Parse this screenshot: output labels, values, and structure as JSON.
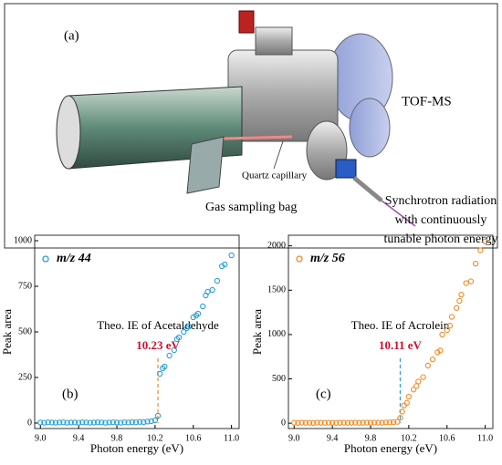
{
  "panel_a": {
    "label": "(a)",
    "tof": "TOF-MS",
    "capillary": "Quartz capillary",
    "bag": "Gas sampling bag",
    "synchrotron": [
      "Synchrotron radiation",
      "with continuously",
      "tunable photon energy"
    ]
  },
  "chart_data": [
    {
      "type": "scatter",
      "panel": "(b)",
      "xlabel": "Photon energy (eV)",
      "ylabel": "Peak area",
      "xlim": [
        8.94,
        11.08
      ],
      "ylim": [
        -30,
        1030
      ],
      "xticks": [
        {
          "value": 9,
          "label": "9.0"
        },
        9.4,
        9.8,
        10.2,
        10.6,
        {
          "value": 11,
          "label": "11.0"
        }
      ],
      "yticks": [
        0,
        250,
        500,
        750,
        1000
      ],
      "annotation": {
        "text": "Theo. IE of Acetaldehyde",
        "x": {
          "value": 10.23,
          "label": "10.23 eV"
        },
        "color": "#c8102e",
        "line_color": "#f08a24"
      },
      "series": [
        {
          "name": "m/z 44",
          "color": "#2a9fd6",
          "x": [
            9.0,
            9.04,
            9.08,
            9.12,
            9.16,
            9.2,
            9.24,
            9.28,
            9.32,
            9.36,
            9.4,
            9.44,
            9.48,
            9.52,
            9.56,
            9.6,
            9.64,
            9.68,
            9.72,
            9.76,
            9.8,
            9.84,
            9.88,
            9.92,
            9.96,
            10.0,
            10.04,
            10.08,
            10.12,
            10.16,
            10.2,
            10.23,
            10.25,
            10.28,
            10.3,
            10.35,
            10.4,
            10.43,
            10.45,
            10.5,
            10.53,
            10.55,
            10.6,
            10.63,
            10.65,
            10.7,
            10.73,
            10.75,
            10.8,
            10.85,
            10.9,
            10.93,
            11.0
          ],
          "values": [
            3,
            2,
            4,
            3,
            2,
            3,
            4,
            2,
            3,
            3,
            2,
            4,
            3,
            2,
            3,
            4,
            3,
            2,
            3,
            4,
            3,
            2,
            4,
            3,
            5,
            4,
            6,
            5,
            8,
            10,
            15,
            40,
            270,
            300,
            310,
            370,
            400,
            460,
            470,
            500,
            520,
            530,
            580,
            590,
            600,
            640,
            700,
            720,
            730,
            780,
            860,
            870,
            920
          ]
        }
      ]
    },
    {
      "type": "scatter",
      "panel": "(c)",
      "xlabel": "Photon energy (eV)",
      "ylabel": "Peak area",
      "xlim": [
        8.94,
        11.08
      ],
      "ylim": [
        -60,
        2120
      ],
      "xticks": [
        {
          "value": 9,
          "label": "9.0"
        },
        9.4,
        9.8,
        10.2,
        10.6,
        {
          "value": 11,
          "label": "11.0"
        }
      ],
      "yticks": [
        0,
        500,
        1000,
        1500,
        2000
      ],
      "annotation": {
        "text": "Theo. IE of Acrolein",
        "x": {
          "value": 10.11,
          "label": "10.11 eV"
        },
        "color": "#c8102e",
        "line_color": "#2a9fd6"
      },
      "series": [
        {
          "name": "m/z 56",
          "color": "#f08a24",
          "x": [
            9.0,
            9.04,
            9.08,
            9.12,
            9.16,
            9.2,
            9.24,
            9.28,
            9.32,
            9.36,
            9.4,
            9.44,
            9.48,
            9.52,
            9.56,
            9.6,
            9.64,
            9.68,
            9.72,
            9.76,
            9.8,
            9.84,
            9.88,
            9.92,
            9.96,
            10.0,
            10.04,
            10.08,
            10.11,
            10.13,
            10.15,
            10.18,
            10.2,
            10.25,
            10.28,
            10.3,
            10.35,
            10.4,
            10.45,
            10.5,
            10.53,
            10.55,
            10.6,
            10.63,
            10.65,
            10.7,
            10.73,
            10.75,
            10.8,
            10.85,
            10.9,
            10.95,
            11.0
          ],
          "values": [
            5,
            3,
            6,
            4,
            5,
            3,
            6,
            5,
            4,
            6,
            5,
            3,
            5,
            6,
            4,
            5,
            6,
            4,
            5,
            6,
            5,
            7,
            6,
            5,
            8,
            10,
            12,
            15,
            60,
            130,
            200,
            230,
            300,
            380,
            420,
            470,
            520,
            650,
            720,
            800,
            820,
            1000,
            1050,
            1100,
            1200,
            1300,
            1380,
            1450,
            1580,
            1600,
            1800,
            1950,
            2050
          ]
        }
      ]
    }
  ]
}
